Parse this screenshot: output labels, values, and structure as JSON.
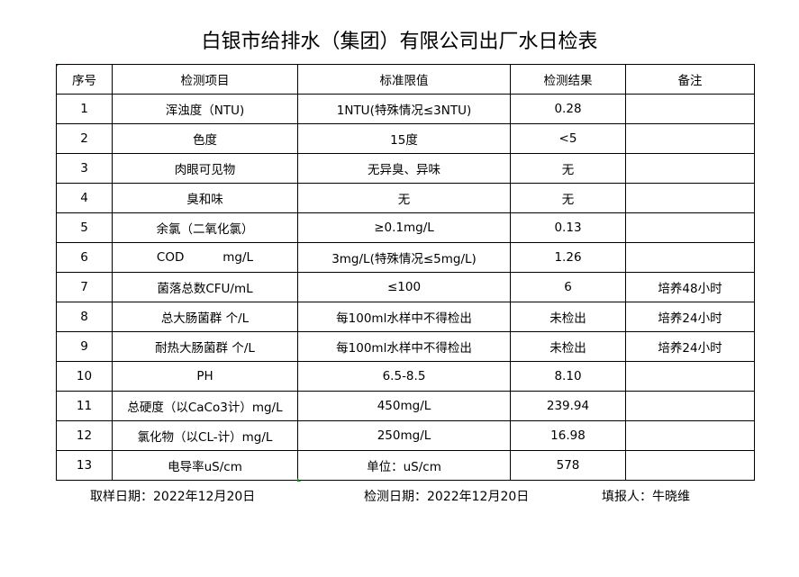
{
  "title": "白银市给排水（集团）有限公司出厂水日检表",
  "headers": [
    "序号",
    "检测项目",
    "标准限值",
    "检测结果",
    "备注"
  ],
  "rows": [
    [
      "1",
      "浑浊度（NTU)",
      "1NTU(特殊情况≤3NTU)",
      "0.28",
      ""
    ],
    [
      "2",
      "色度",
      "15度",
      "<5",
      ""
    ],
    [
      "3",
      "肉眼可见物",
      "无异臭、异味",
      "无",
      ""
    ],
    [
      "4",
      "臭和味",
      "无",
      "无",
      ""
    ],
    [
      "5",
      "余氯（二氧化氯）",
      "≥0.1mg/L",
      "0.13",
      ""
    ],
    [
      "6",
      "COD          mg/L",
      "3mg/L(特殊情况≤5mg/L)",
      "1.26",
      ""
    ],
    [
      "7",
      "菌落总数CFU/mL",
      "≤100",
      "6",
      "培养48小时"
    ],
    [
      "8",
      "总大肠菌群 个/L",
      "每100ml水样中不得检出",
      "未检出",
      "培养24小时"
    ],
    [
      "9",
      "耐热大肠菌群 个/L",
      "每100ml水样中不得检出",
      "未检出",
      "培养24小时"
    ],
    [
      "10",
      "PH",
      "6.5-8.5",
      "8.10",
      ""
    ],
    [
      "11",
      "总硬度（以CaCo3计）mg/L",
      "450mg/L",
      "239.94",
      ""
    ],
    [
      "12",
      "氯化物（以CL-计）mg/L",
      "250mg/L",
      "16.98",
      ""
    ],
    [
      "13",
      "电导率uS/cm",
      "单位：uS/cm",
      "578",
      ""
    ]
  ],
  "footer": {
    "sample_date": "取样日期：2022年12月20日",
    "test_date": "检测日期：2022年12月20日",
    "reporter": "填报人：牛晓维"
  }
}
